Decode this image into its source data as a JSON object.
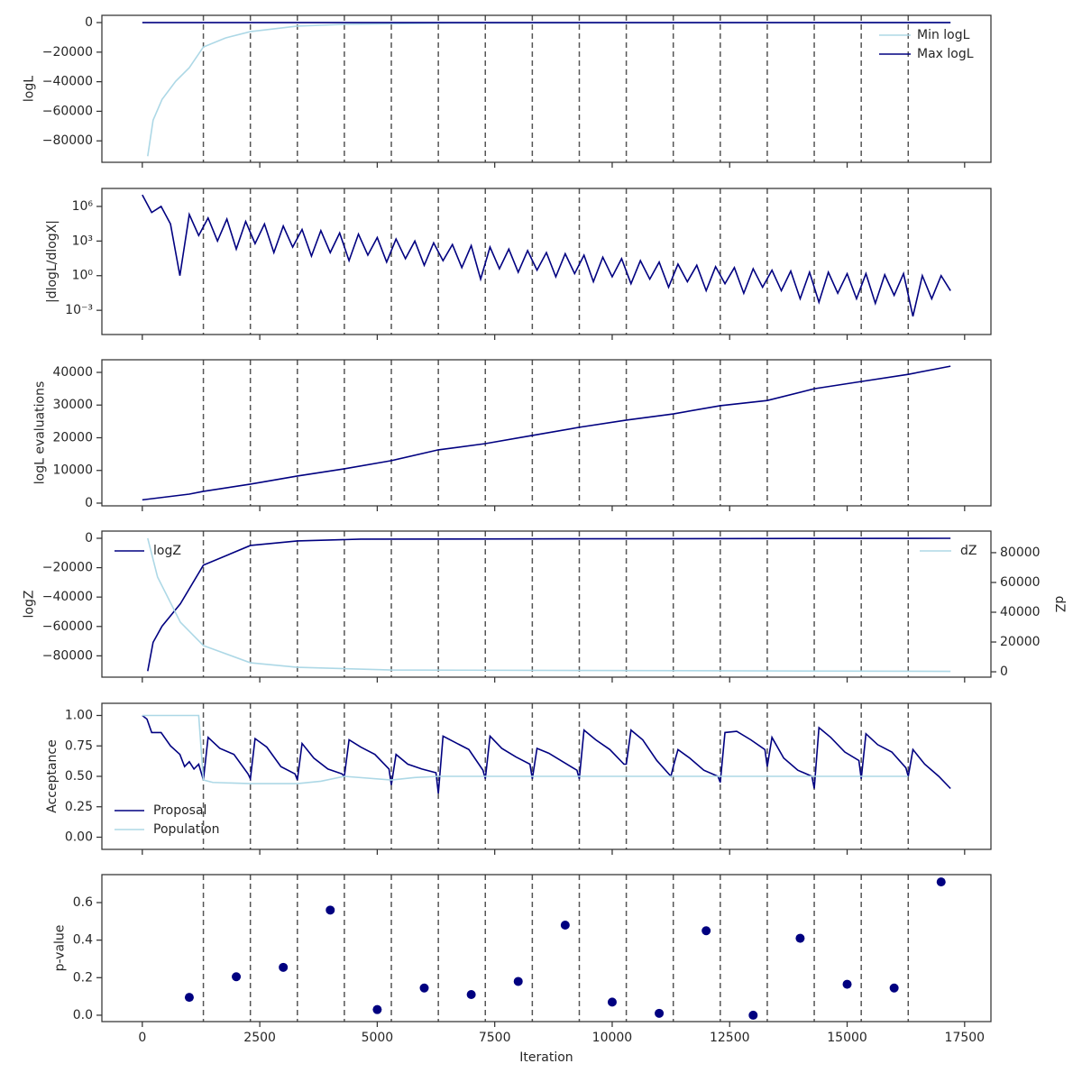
{
  "chart_data": [
    {
      "type": "line",
      "ylabel": "logL",
      "xlim": [
        -860,
        18060
      ],
      "xticks": [
        0,
        2500,
        5000,
        7500,
        10000,
        12500,
        15000,
        17500
      ],
      "ylim": [
        -94500,
        4900
      ],
      "yticks": [
        {
          "value": -80000,
          "label": "−80000"
        },
        {
          "value": -60000,
          "label": "−60000"
        },
        {
          "value": -40000,
          "label": "−40000"
        },
        {
          "value": -20000,
          "label": "−20000"
        },
        0
      ],
      "vlines": [
        1300,
        2300,
        3300,
        4300,
        5300,
        6300,
        7300,
        8300,
        9300,
        10300,
        11300,
        12300,
        13300,
        14300,
        15300,
        16300
      ],
      "series": [
        {
          "name": "Min logL",
          "color": "#add8e6",
          "legend": "upper right",
          "x": [
            115,
            230,
            420,
            710,
            1000,
            1300,
            1770,
            2300,
            3300,
            4300,
            6570,
            17200
          ],
          "values": [
            -90400,
            -66000,
            -52000,
            -39700,
            -30500,
            -16500,
            -10400,
            -6100,
            -2400,
            -1200,
            -300,
            0
          ]
        },
        {
          "name": "Max logL",
          "color": "#000080",
          "legend": "upper right",
          "x": [
            0,
            17200
          ],
          "values": [
            0,
            0
          ]
        }
      ]
    },
    {
      "type": "line",
      "ylabel": "|dlogL/dlogX|",
      "log_scale": true,
      "xlim": [
        -860,
        18060
      ],
      "xticks": [
        0,
        2500,
        5000,
        7500,
        10000,
        12500,
        15000,
        17500
      ],
      "ylim": [
        8e-06,
        36000000.0
      ],
      "yticks": [
        {
          "value": 0.001,
          "label": "10⁻³"
        },
        {
          "value": 1,
          "label": "10⁰"
        },
        {
          "value": 1000,
          "label": "10³"
        },
        {
          "value": 1000000,
          "label": "10⁶"
        }
      ],
      "vlines": [
        1300,
        2300,
        3300,
        4300,
        5300,
        6300,
        7300,
        8300,
        9300,
        10300,
        11300,
        12300,
        13300,
        14300,
        15300,
        16300
      ],
      "series": [
        {
          "color": "#000080",
          "x": [
            0,
            200,
            400,
            600,
            800,
            1000,
            1200,
            1400,
            1600,
            1800,
            2000,
            2200,
            2400,
            2600,
            2800,
            3000,
            3200,
            3400,
            3600,
            3800,
            4000,
            4200,
            4400,
            4600,
            4800,
            5000,
            5200,
            5400,
            5600,
            5800,
            6000,
            6200,
            6400,
            6600,
            6800,
            7000,
            7200,
            7400,
            7600,
            7800,
            8000,
            8200,
            8400,
            8600,
            8800,
            9000,
            9200,
            9400,
            9600,
            9800,
            10000,
            10200,
            10400,
            10600,
            10800,
            11000,
            11200,
            11400,
            11600,
            11800,
            12000,
            12200,
            12400,
            12600,
            12800,
            13000,
            13200,
            13400,
            13600,
            13800,
            14000,
            14200,
            14400,
            14600,
            14800,
            15000,
            15200,
            15400,
            15600,
            15800,
            16000,
            16200,
            16400,
            16600,
            16800,
            17000,
            17200
          ],
          "values": [
            10000000.0,
            300000.0,
            1000000.0,
            30000.0,
            1,
            200000.0,
            3000.0,
            100000.0,
            1000.0,
            80000.0,
            200,
            50000.0,
            600,
            30000.0,
            100,
            20000.0,
            300,
            10000.0,
            50,
            8000.0,
            100,
            5000.0,
            20,
            4000.0,
            60,
            2000.0,
            15,
            1500.0,
            30,
            1000.0,
            8,
            700,
            20,
            500,
            5,
            400,
            0.5,
            300,
            4,
            200,
            2,
            150,
            3,
            100,
            0.8,
            80,
            1.5,
            60,
            0.3,
            40,
            0.8,
            30,
            0.2,
            20,
            0.5,
            15,
            0.1,
            10,
            0.3,
            8,
            0.05,
            6,
            0.2,
            5,
            0.03,
            4,
            0.1,
            3,
            0.05,
            2.5,
            0.01,
            2,
            0.005,
            2,
            0.03,
            1.5,
            0.01,
            1.5,
            0.004,
            1.2,
            0.02,
            1.5,
            0.0003,
            1,
            0.01,
            1,
            0.05
          ]
        }
      ]
    },
    {
      "type": "line",
      "ylabel": "logL evaluations",
      "xlim": [
        -860,
        18060
      ],
      "xticks": [
        0,
        2500,
        5000,
        7500,
        10000,
        12500,
        15000,
        17500
      ],
      "ylim": [
        -830,
        43860
      ],
      "yticks": [
        0,
        10000,
        20000,
        30000,
        40000
      ],
      "vlines": [
        1300,
        2300,
        3300,
        4300,
        5300,
        6300,
        7300,
        8300,
        9300,
        10300,
        11300,
        12300,
        13300,
        14300,
        15300,
        16300
      ],
      "series": [
        {
          "color": "#000080",
          "x": [
            0,
            1000,
            1300,
            2300,
            3300,
            4300,
            5300,
            6300,
            7300,
            8300,
            9300,
            10300,
            11300,
            12300,
            13300,
            14300,
            15300,
            16300,
            17200
          ],
          "values": [
            1000,
            2760,
            3600,
            5800,
            8300,
            10500,
            13000,
            16300,
            18200,
            20700,
            23200,
            25400,
            27300,
            29800,
            31400,
            35000,
            37200,
            39400,
            41900
          ]
        }
      ]
    },
    {
      "type": "line",
      "ylabel": "logZ",
      "y2label": "dZ",
      "xlim": [
        -860,
        18060
      ],
      "xticks": [
        0,
        2500,
        5000,
        7500,
        10000,
        12500,
        15000,
        17500
      ],
      "ylim": [
        -94500,
        4900
      ],
      "yticks": [
        {
          "value": -80000,
          "label": "−80000"
        },
        {
          "value": -60000,
          "label": "−60000"
        },
        {
          "value": -40000,
          "label": "−40000"
        },
        {
          "value": -20000,
          "label": "−20000"
        },
        0
      ],
      "y2lim": [
        -3600,
        94500
      ],
      "y2ticks": [
        0,
        20000,
        40000,
        60000,
        80000
      ],
      "vlines": [
        1300,
        2300,
        3300,
        4300,
        5300,
        6300,
        7300,
        8300,
        9300,
        10300,
        11300,
        12300,
        13300,
        14300,
        15300,
        16300
      ],
      "series": [
        {
          "name": "logZ",
          "color": "#000080",
          "legend": "upper left",
          "x": [
            115,
            230,
            420,
            810,
            1300,
            2300,
            3300,
            4650,
            17200
          ],
          "values": [
            -90400,
            -70800,
            -59800,
            -44600,
            -18300,
            -4900,
            -1800,
            -600,
            0
          ]
        },
        {
          "name": "dZ",
          "color": "#add8e6",
          "legend": "upper right",
          "axis": "y2",
          "x": [
            115,
            325,
            810,
            1300,
            2300,
            3300,
            5300,
            17200
          ],
          "values": [
            89700,
            63600,
            33300,
            17600,
            6060,
            3000,
            1200,
            300
          ]
        }
      ]
    },
    {
      "type": "line",
      "ylabel": "Acceptance",
      "xlim": [
        -860,
        18060
      ],
      "xticks": [
        0,
        2500,
        5000,
        7500,
        10000,
        12500,
        15000,
        17500
      ],
      "ylim": [
        -0.1,
        1.1
      ],
      "yticks": [
        {
          "value": 0,
          "label": "0.00"
        },
        0.25,
        {
          "value": 0.5,
          "label": "0.50"
        },
        0.75,
        {
          "value": 1,
          "label": "1.00"
        }
      ],
      "vlines": [
        1300,
        2300,
        3300,
        4300,
        5300,
        6300,
        7300,
        8300,
        9300,
        10300,
        11300,
        12300,
        13300,
        14300,
        15300,
        16300
      ],
      "series": [
        {
          "name": "Proposal",
          "color": "#000080",
          "legend": "lower left",
          "x": [
            0,
            100,
            200,
            400,
            600,
            800,
            900,
            1000,
            1100,
            1200,
            1300,
            1400,
            1650,
            1950,
            2250,
            2300,
            2400,
            2650,
            2950,
            3250,
            3300,
            3400,
            3650,
            3950,
            4250,
            4300,
            4400,
            4650,
            4950,
            5250,
            5300,
            5400,
            5650,
            5950,
            6250,
            6300,
            6400,
            6650,
            6950,
            7250,
            7300,
            7400,
            7650,
            7950,
            8250,
            8300,
            8400,
            8650,
            8950,
            9250,
            9300,
            9400,
            9650,
            9950,
            10250,
            10300,
            10400,
            10650,
            10950,
            11250,
            11300,
            11400,
            11650,
            11950,
            12250,
            12300,
            12400,
            12650,
            12950,
            13250,
            13300,
            13400,
            13650,
            13950,
            14250,
            14300,
            14400,
            14650,
            14950,
            15250,
            15300,
            15400,
            15650,
            15950,
            16250,
            16300,
            16400,
            16650,
            16950,
            17200
          ],
          "values": [
            1,
            0.97,
            0.86,
            0.86,
            0.75,
            0.68,
            0.58,
            0.62,
            0.56,
            0.6,
            0.47,
            0.82,
            0.73,
            0.68,
            0.52,
            0.48,
            0.81,
            0.74,
            0.58,
            0.52,
            0.47,
            0.77,
            0.65,
            0.56,
            0.52,
            0.5,
            0.8,
            0.74,
            0.68,
            0.56,
            0.43,
            0.68,
            0.6,
            0.56,
            0.53,
            0.36,
            0.83,
            0.78,
            0.72,
            0.55,
            0.48,
            0.83,
            0.73,
            0.66,
            0.6,
            0.48,
            0.73,
            0.69,
            0.62,
            0.55,
            0.48,
            0.88,
            0.8,
            0.72,
            0.6,
            0.6,
            0.88,
            0.8,
            0.63,
            0.5,
            0.58,
            0.72,
            0.65,
            0.55,
            0.5,
            0.45,
            0.86,
            0.87,
            0.8,
            0.72,
            0.58,
            0.82,
            0.65,
            0.55,
            0.5,
            0.4,
            0.9,
            0.82,
            0.7,
            0.63,
            0.48,
            0.85,
            0.76,
            0.7,
            0.57,
            0.5,
            0.72,
            0.6,
            0.5,
            0.4
          ]
        },
        {
          "name": "Population",
          "color": "#add8e6",
          "legend": "lower left",
          "x": [
            0,
            1200,
            1300,
            1500,
            2300,
            3300,
            3800,
            4300,
            5300,
            5800,
            6300,
            16300
          ],
          "values": [
            1,
            1,
            0.47,
            0.45,
            0.44,
            0.44,
            0.46,
            0.5,
            0.47,
            0.49,
            0.5,
            0.5
          ]
        }
      ]
    },
    {
      "type": "scatter",
      "ylabel": "p-value",
      "xlabel": "Iteration",
      "xlim": [
        -860,
        18060
      ],
      "xticks": [
        0,
        2500,
        5000,
        7500,
        10000,
        12500,
        15000,
        17500
      ],
      "ylim": [
        -0.034,
        0.749
      ],
      "yticks": [
        {
          "value": 0,
          "label": "0.0"
        },
        0.2,
        0.4,
        0.6
      ],
      "vlines": [
        1300,
        2300,
        3300,
        4300,
        5300,
        6300,
        7300,
        8300,
        9300,
        10300,
        11300,
        12300,
        13300,
        14300,
        15300,
        16300
      ],
      "series": [
        {
          "color": "#000080",
          "x": [
            1000,
            2000,
            3000,
            4000,
            5000,
            6000,
            7000,
            8000,
            9000,
            10000,
            11000,
            12000,
            13000,
            14000,
            15000,
            16000,
            17000
          ],
          "values": [
            0.095,
            0.205,
            0.255,
            0.56,
            0.03,
            0.145,
            0.11,
            0.18,
            0.48,
            0.07,
            0.01,
            0.45,
            0.0,
            0.41,
            0.165,
            0.145,
            0.71
          ]
        }
      ]
    }
  ]
}
